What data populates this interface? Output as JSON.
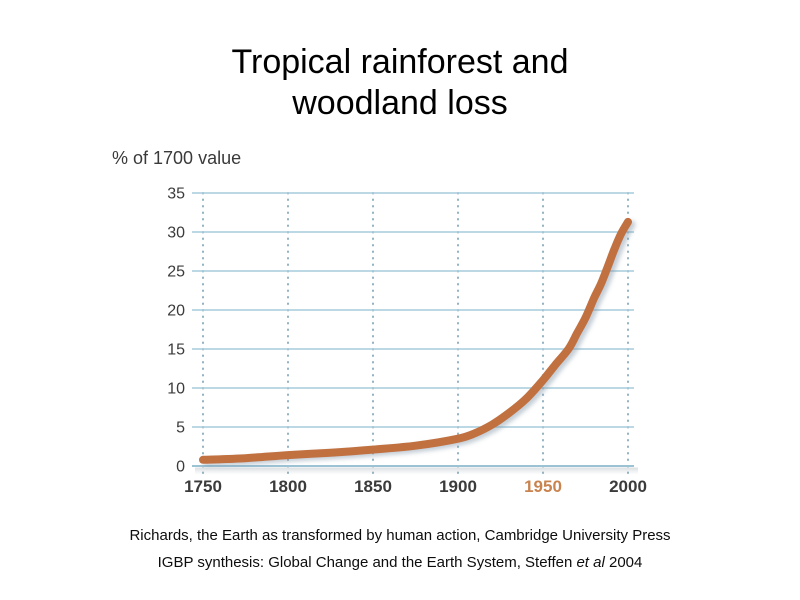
{
  "slide": {
    "title_line1": "Tropical rainforest and",
    "title_line2": "woodland loss",
    "footer_line1": "Richards, the Earth as transformed by human action, Cambridge University Press",
    "footer_line2_prefix": "IGBP synthesis: Global Change and the Earth System, Steffen ",
    "footer_line2_italic": "et al",
    "footer_line2_suffix": " 2004"
  },
  "chart_data": {
    "type": "line",
    "title": "Tropical rainforest and woodland loss",
    "ylabel": "% of 1700 value",
    "xlabel": "",
    "xlim": [
      1750,
      2000
    ],
    "ylim": [
      0,
      35
    ],
    "x_ticks": [
      "1750",
      "1800",
      "1850",
      "1900",
      "1950",
      "2000"
    ],
    "y_ticks": [
      35,
      30,
      25,
      20,
      15,
      10,
      5,
      0
    ],
    "grid": {
      "horizontal": "solid",
      "vertical": "dotted"
    },
    "legend": "none",
    "highlight_x_tick": "1950",
    "series": [
      {
        "name": "loss of tropical rainforest and woodland (% of 1700 value)",
        "color": "#c17140",
        "points": [
          [
            1750,
            0.8
          ],
          [
            1775,
            1.0
          ],
          [
            1800,
            1.4
          ],
          [
            1825,
            1.7
          ],
          [
            1850,
            2.1
          ],
          [
            1875,
            2.6
          ],
          [
            1900,
            3.5
          ],
          [
            1910,
            4.2
          ],
          [
            1920,
            5.3
          ],
          [
            1930,
            6.8
          ],
          [
            1940,
            8.6
          ],
          [
            1950,
            11.0
          ],
          [
            1957,
            12.9
          ],
          [
            1965,
            15.0
          ],
          [
            1970,
            17.0
          ],
          [
            1975,
            19.0
          ],
          [
            1980,
            21.5
          ],
          [
            1984,
            23.3
          ],
          [
            1988,
            25.5
          ],
          [
            1992,
            27.8
          ],
          [
            1996,
            29.8
          ],
          [
            2000,
            31.3
          ]
        ]
      }
    ],
    "colors": {
      "grid_line": "#a6cbdb",
      "grid_dot": "#85a9ba",
      "axis_line": "#9cc3d4",
      "tick_label": "#3b3b3b",
      "highlight_tick": "#c9834f",
      "curve": "#c17140"
    }
  }
}
